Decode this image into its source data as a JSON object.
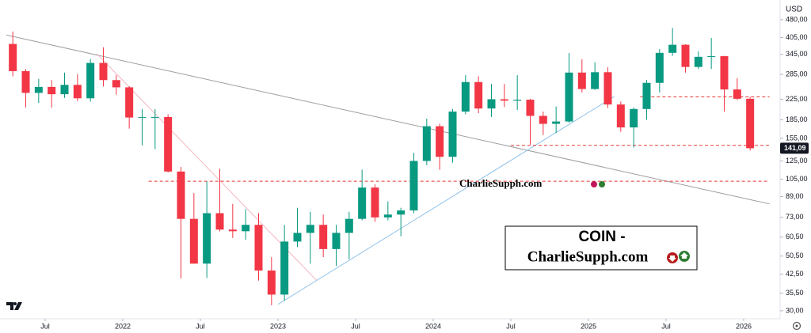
{
  "chart_data": {
    "type": "candlestick",
    "title": "COIN -",
    "subtitle": "CharlieSupph.com",
    "watermark": "CharlieSupph.com",
    "currency": "USD",
    "log_scale": true,
    "up_color": "#089981",
    "down_color": "#f23645",
    "x": [
      "2021-04",
      "2021-05",
      "2021-06",
      "2021-07",
      "2021-08",
      "2021-09",
      "2021-10",
      "2021-11",
      "2021-12",
      "2022-01",
      "2022-02",
      "2022-03",
      "2022-04",
      "2022-05",
      "2022-06",
      "2022-07",
      "2022-08",
      "2022-09",
      "2022-10",
      "2022-11",
      "2022-12",
      "2023-01",
      "2023-02",
      "2023-03",
      "2023-04",
      "2023-05",
      "2023-06",
      "2023-07",
      "2023-08",
      "2023-09",
      "2023-10",
      "2023-11",
      "2023-12",
      "2024-01",
      "2024-02",
      "2024-03",
      "2024-04",
      "2024-05",
      "2024-06",
      "2024-07",
      "2024-08",
      "2024-09",
      "2024-10",
      "2024-11",
      "2024-12",
      "2025-01",
      "2025-02",
      "2025-03",
      "2025-04",
      "2025-05",
      "2025-06",
      "2025-07",
      "2025-08",
      "2025-09",
      "2025-10",
      "2025-11",
      "2025-12",
      "2026-01"
    ],
    "open": [
      381,
      294,
      239,
      253,
      236,
      258,
      227,
      318,
      270,
      252,
      189,
      190,
      190,
      113,
      72,
      47,
      76,
      65,
      64,
      68,
      44,
      35,
      58,
      63,
      68,
      54,
      63,
      72,
      97,
      73,
      75,
      78,
      125,
      174,
      130,
      200,
      265,
      206,
      225,
      222,
      224,
      192,
      178,
      182,
      290,
      248,
      291,
      214,
      172,
      205,
      263,
      350,
      378,
      306,
      337,
      339,
      247,
      226
    ],
    "high": [
      429,
      300,
      273,
      270,
      290,
      286,
      330,
      369,
      283,
      255,
      205,
      205,
      195,
      118,
      92,
      103,
      116,
      83,
      79,
      76,
      50,
      68,
      80,
      77,
      75,
      68,
      77,
      115,
      100,
      85,
      80,
      135,
      187,
      178,
      205,
      283,
      280,
      260,
      260,
      283,
      226,
      200,
      210,
      349,
      329,
      320,
      305,
      220,
      208,
      270,
      363,
      444,
      380,
      355,
      403,
      340,
      275,
      230
    ],
    "low": [
      280,
      208,
      217,
      208,
      228,
      221,
      220,
      254,
      235,
      170,
      145,
      140,
      112,
      40.8,
      47,
      41,
      64,
      60,
      59,
      40,
      31.6,
      33,
      55,
      47,
      50,
      46,
      49,
      71,
      70,
      71,
      61,
      76,
      120,
      115,
      123,
      195,
      197,
      190,
      209,
      203,
      146,
      160,
      163,
      180,
      240,
      246,
      207,
      165,
      142,
      185,
      240,
      340,
      290,
      300,
      300,
      200,
      223,
      138
    ],
    "close": [
      294,
      239,
      253,
      236,
      258,
      227,
      318,
      270,
      252,
      189,
      190,
      190,
      113,
      72,
      47,
      76,
      65,
      64,
      68,
      44,
      35,
      58,
      63,
      68,
      54,
      63,
      72,
      97,
      73,
      75,
      78,
      125,
      174,
      130,
      200,
      265,
      206,
      225,
      222,
      224,
      192,
      178,
      182,
      290,
      248,
      291,
      214,
      172,
      205,
      263,
      350,
      378,
      306,
      337,
      339,
      247,
      226,
      141.09
    ],
    "last_price": {
      "value": 141.09,
      "label": "141,09"
    },
    "ylim": [
      27.8,
      579
    ],
    "yticks": [
      {
        "value": 480,
        "label": "480,00"
      },
      {
        "value": 405,
        "label": "405,00"
      },
      {
        "value": 345,
        "label": "345,00"
      },
      {
        "value": 285,
        "label": "285,00"
      },
      {
        "value": 225,
        "label": "225,00"
      },
      {
        "value": 185,
        "label": "185,00"
      },
      {
        "value": 155,
        "label": "155,00"
      },
      {
        "value": 125,
        "label": "125,00"
      },
      {
        "value": 105,
        "label": "105,00"
      },
      {
        "value": 89,
        "label": "89,00"
      },
      {
        "value": 73,
        "label": "73,00"
      },
      {
        "value": 60.5,
        "label": "60,50"
      },
      {
        "value": 50.5,
        "label": "50,50"
      },
      {
        "value": 42.5,
        "label": "42,50"
      },
      {
        "value": 35.5,
        "label": "35,50"
      },
      {
        "value": 30,
        "label": "30,00"
      }
    ],
    "xticks": [
      {
        "value": "2021-07",
        "label": "Jul"
      },
      {
        "value": "2022-01",
        "label": "2022"
      },
      {
        "value": "2022-07",
        "label": "Jul"
      },
      {
        "value": "2023-01",
        "label": "2023"
      },
      {
        "value": "2023-07",
        "label": "Jul"
      },
      {
        "value": "2024-01",
        "label": "2024"
      },
      {
        "value": "2024-07",
        "label": "Jul"
      },
      {
        "value": "2025-01",
        "label": "2025"
      },
      {
        "value": "2025-07",
        "label": "Jul"
      },
      {
        "value": "2026-01",
        "label": "2026"
      }
    ],
    "trend_lines": [
      {
        "color": "#9e9e9e",
        "x": [
          "2021-04",
          "2026-03"
        ],
        "values": [
          415,
          83
        ]
      },
      {
        "color": "#f4b6bf",
        "x": [
          "2021-11",
          "2023-04"
        ],
        "values": [
          347,
          40
        ]
      },
      {
        "color": "#8ec1ea",
        "x": [
          "2023-01",
          "2025-03"
        ],
        "values": [
          31.9,
          231
        ]
      }
    ],
    "levels": [
      {
        "color": "#e53935",
        "x": [
          "2025-05",
          "2026-03"
        ],
        "value": 230
      },
      {
        "color": "#e53935",
        "x": [
          "2024-07",
          "2026-03"
        ],
        "value": 145
      },
      {
        "color": "#e53935",
        "x": [
          "2022-03",
          "2026-03"
        ],
        "value": 103
      }
    ]
  }
}
